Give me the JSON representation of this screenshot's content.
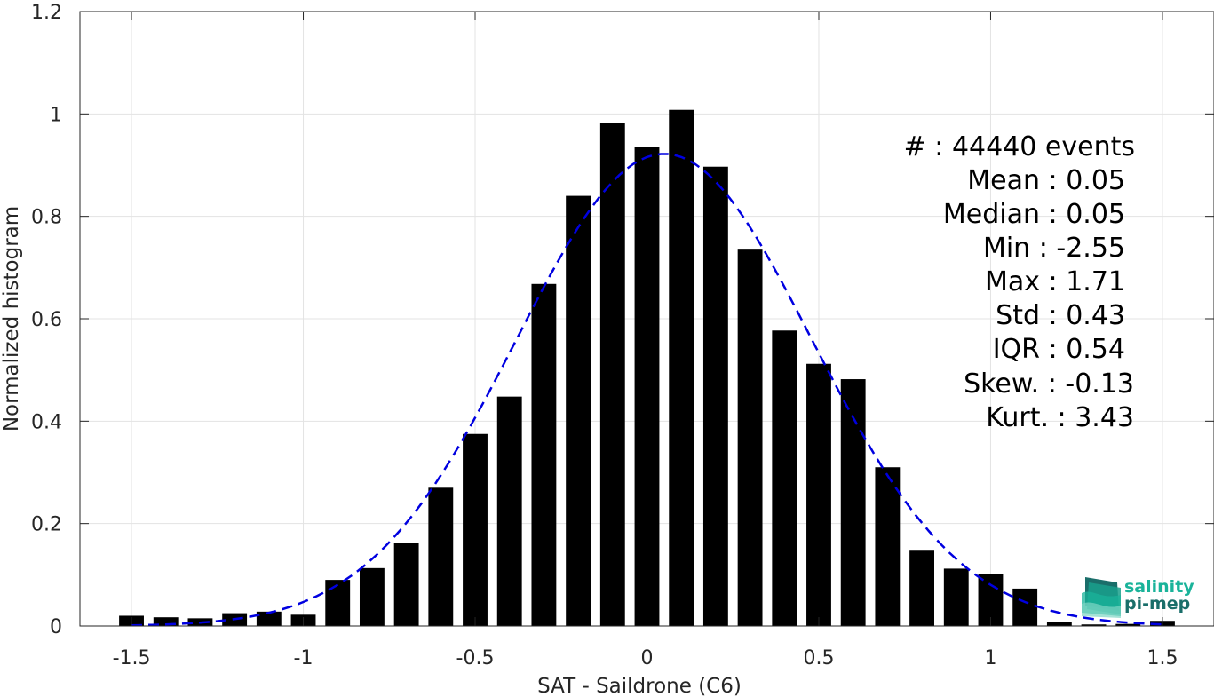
{
  "chart_data": {
    "type": "bar",
    "xlabel": "SAT - Saildrone (C6)",
    "ylabel": "Normalized histogram",
    "xlim": [
      -1.65,
      1.65
    ],
    "ylim": [
      0,
      1.2
    ],
    "grid": true,
    "x_ticks": [
      -1.5,
      -1,
      -0.5,
      0,
      0.5,
      1,
      1.5
    ],
    "x_tick_labels": [
      "-1.5",
      "-1",
      "-0.5",
      "0",
      "0.5",
      "1",
      "1.5"
    ],
    "y_ticks": [
      0,
      0.2,
      0.4,
      0.6,
      0.8,
      1,
      1.2
    ],
    "y_tick_labels": [
      "0",
      "0.2",
      "0.4",
      "0.6",
      "0.8",
      "1",
      "1.2"
    ],
    "bin_centers": [
      -1.5,
      -1.4,
      -1.3,
      -1.2,
      -1.1,
      -1.0,
      -0.9,
      -0.8,
      -0.7,
      -0.6,
      -0.5,
      -0.4,
      -0.3,
      -0.2,
      -0.1,
      0.0,
      0.1,
      0.2,
      0.3,
      0.4,
      0.5,
      0.6,
      0.7,
      0.8,
      0.9,
      1.0,
      1.1,
      1.2,
      1.3,
      1.4,
      1.5
    ],
    "bin_width": 0.1,
    "values": [
      0.02,
      0.017,
      0.015,
      0.025,
      0.028,
      0.022,
      0.09,
      0.113,
      0.162,
      0.27,
      0.375,
      0.448,
      0.668,
      0.84,
      0.982,
      0.935,
      1.008,
      0.897,
      0.735,
      0.577,
      0.512,
      0.482,
      0.31,
      0.147,
      0.112,
      0.102,
      0.073,
      0.008,
      0.003,
      0.004,
      0.01
    ],
    "fit_curve": {
      "style": "dashed",
      "color": "#0000e0",
      "mean": 0.05,
      "std": 0.43,
      "peak": 0.922
    },
    "bar_color": "#000000",
    "stats": [
      "#  : 44440 events",
      "Mean : 0.05",
      "Median : 0.05",
      "Min : -2.55",
      "Max : 1.71",
      "Std : 0.43",
      "IQR : 0.54",
      "Skew. : -0.13",
      "Kurt. : 3.43"
    ]
  },
  "logo": {
    "line1": "salinity",
    "line2": "pi-mep",
    "color_1": "#1ab39a",
    "color_2": "#1a6e6a"
  }
}
